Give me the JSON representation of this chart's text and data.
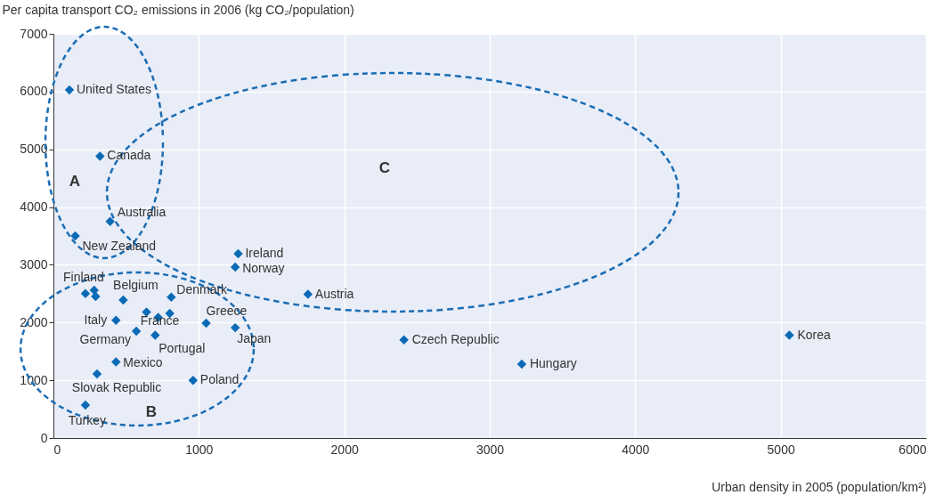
{
  "chart_data": {
    "type": "scatter",
    "xlabel": "Urban density in 2005 (population/km²)",
    "ylabel": "Per capita transport CO₂ emissions in 2006 (kg CO₂/population)",
    "x": [
      110,
      320,
      390,
      150,
      1270,
      1250,
      1750,
      2410,
      3220,
      5060,
      220,
      280,
      290,
      480,
      810,
      430,
      640,
      720,
      800,
      570,
      700,
      1050,
      1250,
      430,
      300,
      960,
      220
    ],
    "series": [
      {
        "color": "#0a6ab5",
        "values": [
          6030,
          4880,
          3750,
          3500,
          3190,
          2960,
          2490,
          1700,
          1280,
          1780,
          2500,
          2560,
          2450,
          2390,
          2440,
          2040,
          2180,
          2090,
          2160,
          1850,
          1780,
          1990,
          1910,
          1320,
          1110,
          1000,
          570
        ]
      }
    ],
    "xlim": [
      0,
      6000
    ],
    "xticks": [
      0,
      1000,
      2000,
      3000,
      4000,
      5000,
      6000
    ],
    "ylim": [
      0,
      7000
    ],
    "yticks": [
      0,
      1000,
      2000,
      3000,
      4000,
      5000,
      6000,
      7000
    ],
    "grid": true,
    "marker": "diamond",
    "annotations": [
      {
        "text": "United States",
        "x": 110,
        "y": 6030
      },
      {
        "text": "Canada",
        "x": 320,
        "y": 4880
      },
      {
        "text": "Australia",
        "x": 390,
        "y": 3750
      },
      {
        "text": "New Zealand",
        "x": 150,
        "y": 3500
      },
      {
        "text": "Ireland",
        "x": 1270,
        "y": 3190
      },
      {
        "text": "Norway",
        "x": 1250,
        "y": 2960
      },
      {
        "text": "Austria",
        "x": 1750,
        "y": 2490
      },
      {
        "text": "Czech Republic",
        "x": 2410,
        "y": 1700
      },
      {
        "text": "Hungary",
        "x": 3220,
        "y": 1280
      },
      {
        "text": "Korea",
        "x": 5060,
        "y": 1780
      },
      {
        "text": "Finland",
        "x": 220,
        "y": 2500
      },
      {
        "text": "Belgium",
        "x": 480,
        "y": 2390
      },
      {
        "text": "Denmark",
        "x": 810,
        "y": 2440
      },
      {
        "text": "Italy",
        "x": 430,
        "y": 2040
      },
      {
        "text": "France",
        "x": 720,
        "y": 2090
      },
      {
        "text": "Germany",
        "x": 570,
        "y": 1850
      },
      {
        "text": "Portugal",
        "x": 700,
        "y": 1780
      },
      {
        "text": "Greece",
        "x": 1050,
        "y": 1990
      },
      {
        "text": "Japan",
        "x": 1250,
        "y": 1910
      },
      {
        "text": "Mexico",
        "x": 430,
        "y": 1320
      },
      {
        "text": "Slovak Republic",
        "x": 300,
        "y": 1110
      },
      {
        "text": "Poland",
        "x": 960,
        "y": 1000
      },
      {
        "text": "Turkey",
        "x": 220,
        "y": 570
      },
      "A",
      "B",
      "C"
    ]
  }
}
